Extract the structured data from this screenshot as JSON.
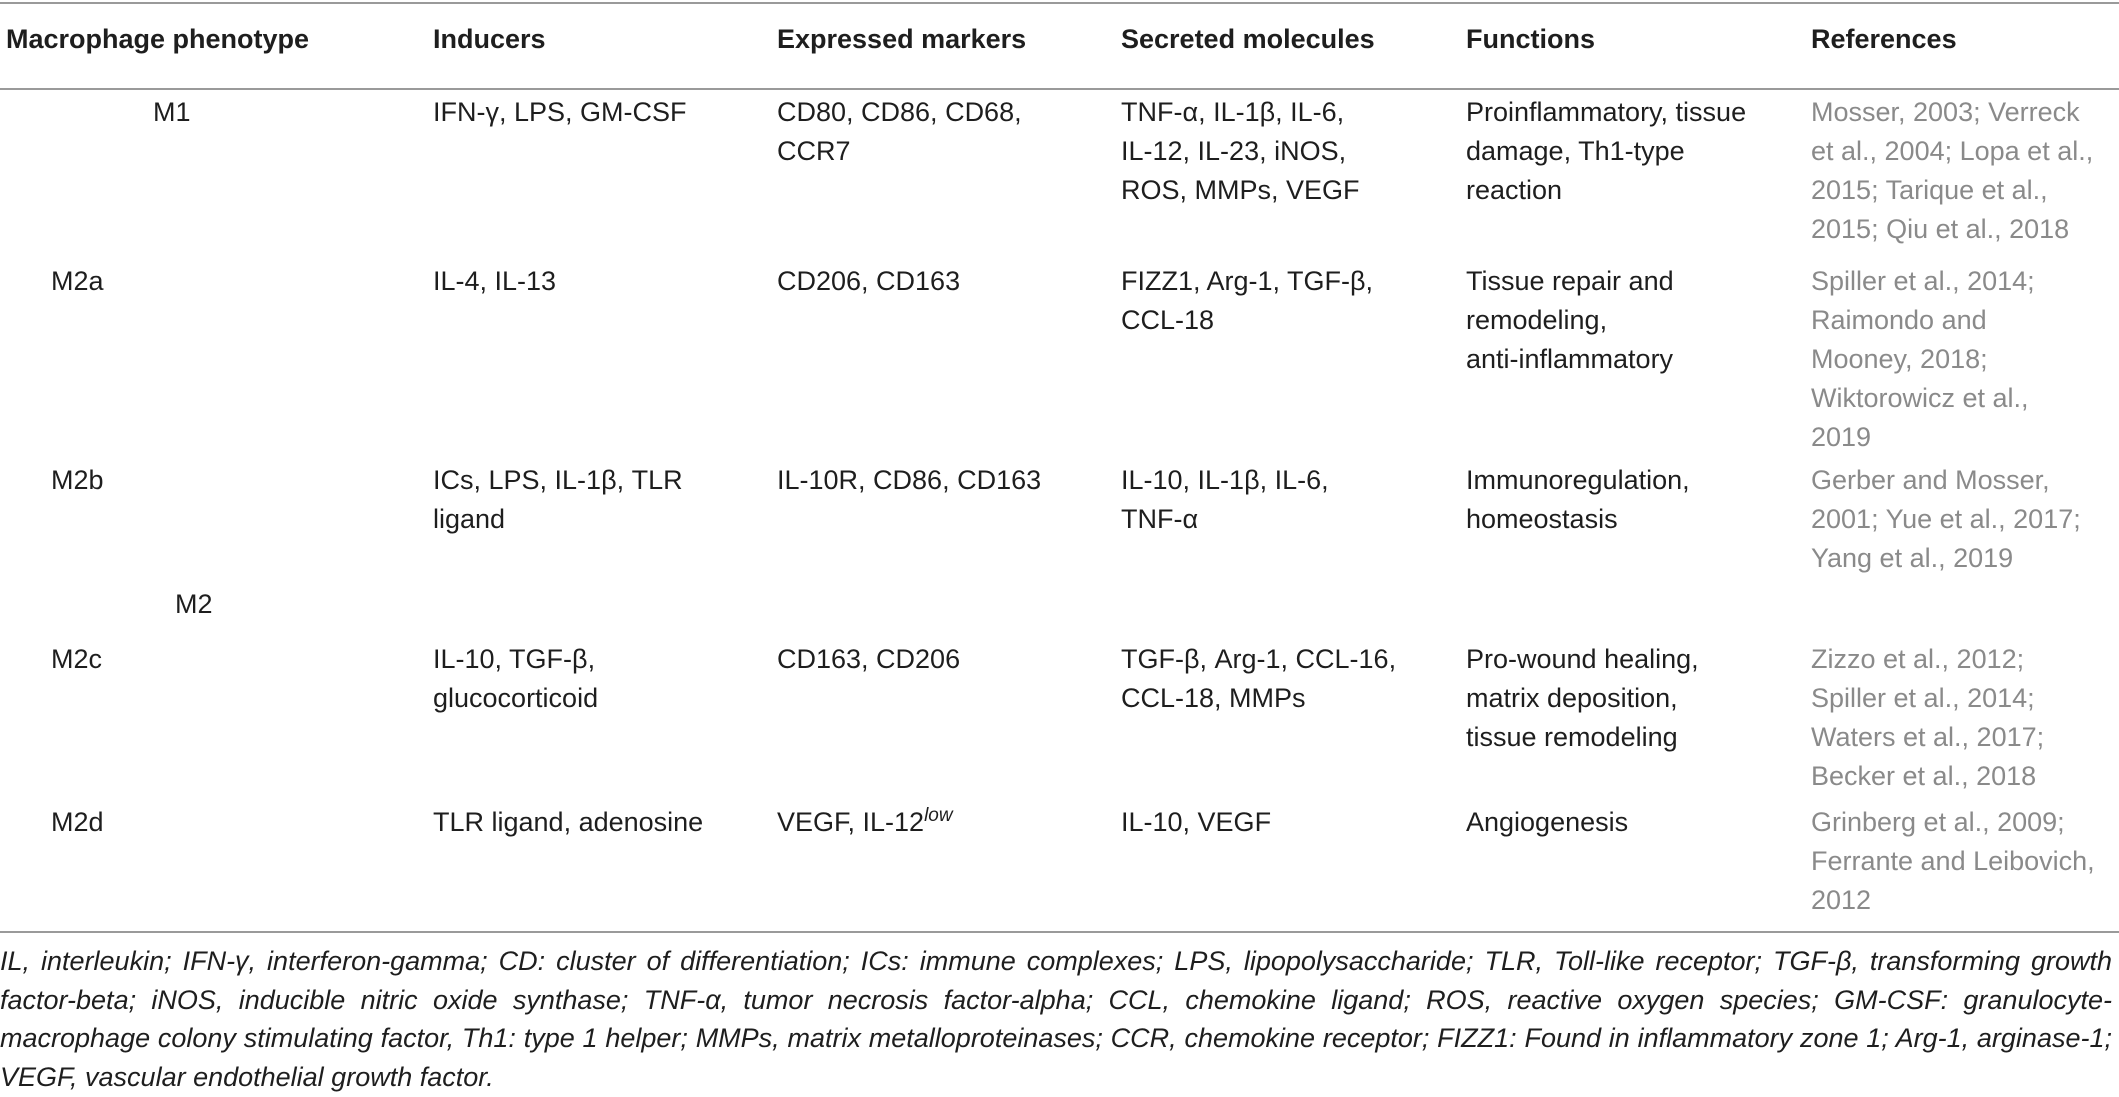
{
  "table": {
    "headers": [
      "Macrophage phenotype",
      "Inducers",
      "Expressed markers",
      "Secreted molecules",
      "Functions",
      "References"
    ],
    "group_labels": {
      "m1": "M1",
      "m2": "M2"
    },
    "rows": [
      {
        "phenotype": "M1",
        "inducers": "IFN-γ, LPS, GM-CSF",
        "markers": "CD80, CD86, CD68,\nCCR7",
        "secreted": "TNF-α, IL-1β, IL-6,\nIL-12, IL-23, iNOS,\nROS, MMPs, VEGF",
        "functions": "Proinflammatory, tissue\ndamage, Th1-type\nreaction",
        "references": "Mosser, 2003; Verreck\net al., 2004; Lopa et al.,\n2015; Tarique et al.,\n2015; Qiu et al., 2018"
      },
      {
        "phenotype": "M2a",
        "inducers": "IL-4, IL-13",
        "markers": "CD206, CD163",
        "secreted": "FIZZ1, Arg-1, TGF-β,\nCCL-18",
        "functions": "Tissue repair and\nremodeling,\nanti-inflammatory",
        "references": "Spiller et al., 2014;\nRaimondo and\nMooney, 2018;\nWiktorowicz et al.,\n2019"
      },
      {
        "phenotype": "M2b",
        "inducers": "ICs, LPS, IL-1β, TLR\nligand",
        "markers": "IL-10R, CD86, CD163",
        "secreted": "IL-10, IL-1β, IL-6,\nTNF-α",
        "functions": "Immunoregulation,\nhomeostasis",
        "references": "Gerber and Mosser,\n2001; Yue et al., 2017;\nYang et al., 2019"
      },
      {
        "phenotype": "M2c",
        "inducers": "IL-10, TGF-β,\nglucocorticoid",
        "markers": "CD163, CD206",
        "secreted": "TGF-β, Arg-1, CCL-16,\nCCL-18, MMPs",
        "functions": "Pro-wound healing,\nmatrix deposition,\ntissue remodeling",
        "references": "Zizzo et al., 2012;\nSpiller et al., 2014;\nWaters et al., 2017;\nBecker et al., 2018"
      },
      {
        "phenotype": "M2d",
        "inducers": "TLR ligand, adenosine",
        "markers_base": "VEGF, IL-12",
        "markers_sup": "low",
        "secreted": "IL-10, VEGF",
        "functions": "Angiogenesis",
        "references": "Grinberg et al., 2009;\nFerrante and Leibovich,\n2012"
      }
    ]
  },
  "footnote": "IL, interleukin; IFN-γ, interferon-gamma; CD: cluster of differentiation; ICs: immune complexes; LPS, lipopolysaccharide; TLR, Toll-like receptor; TGF-β, transforming growth factor-beta; iNOS, inducible nitric oxide synthase; TNF-α, tumor necrosis factor-alpha; CCL, chemokine ligand; ROS, reactive oxygen species; GM-CSF: granulocyte-macrophage colony stimulating factor, Th1: type 1 helper; MMPs, matrix metalloproteinases; CCR, chemokine receptor; FIZZ1: Found in inflammatory zone 1; Arg-1, arginase-1; VEGF, vascular endothelial growth factor."
}
